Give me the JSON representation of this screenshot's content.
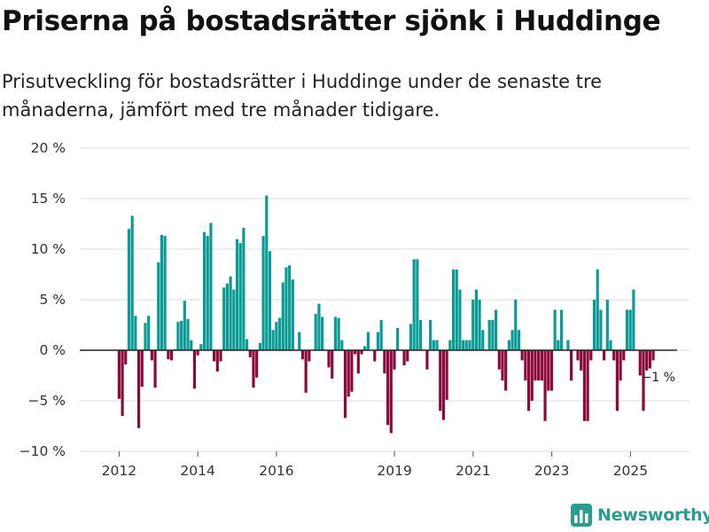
{
  "title": "Priserna på bostadsrätter sjönk i Huddinge",
  "subtitle": "Prisutveckling för bostadsrätter i Huddinge under de senaste tre månaderna, jämfört med tre månader tidigare.",
  "brand": {
    "name": "Newsworthy",
    "icon": "bar-chart-logo-icon",
    "color": "#2a9d8f"
  },
  "colors": {
    "positive": "#0b9b94",
    "negative": "#8b0a3b",
    "grid": "#dddddd",
    "baseline": "#222222"
  },
  "chart_data": {
    "type": "bar",
    "title": "Priserna på bostadsrätter sjönk i Huddinge",
    "xlabel": "",
    "ylabel": "",
    "ylim": [
      -10,
      20
    ],
    "xlim": [
      2011.0,
      2026.5
    ],
    "yticks": [
      -10,
      -5,
      0,
      5,
      10,
      15,
      20
    ],
    "ytick_labels": [
      "−10 %",
      "−5 %",
      "0 %",
      "5 %",
      "10 %",
      "15 %",
      "20 %"
    ],
    "xticks": [
      2012,
      2014,
      2016,
      2019,
      2021,
      2023,
      2025
    ],
    "xtick_labels": [
      "2012",
      "2014",
      "2016",
      "2019",
      "2021",
      "2023",
      "2025"
    ],
    "x_start": 2012.0,
    "x_step": 0.0833,
    "values": [
      -4.8,
      -6.5,
      -1.4,
      12,
      13.3,
      3.4,
      -7.7,
      -3.6,
      2.7,
      3.4,
      -1.0,
      -3.7,
      8.7,
      11.4,
      11.3,
      -0.9,
      -1.0,
      0.1,
      2.8,
      2.9,
      4.9,
      3.1,
      1.0,
      -3.8,
      -0.5,
      0.6,
      11.7,
      11.3,
      12.6,
      -1.1,
      -2.1,
      -1.1,
      6.2,
      6.6,
      7.3,
      6.0,
      11.0,
      10.6,
      12.1,
      1.1,
      -0.7,
      -3.7,
      -2.7,
      0.7,
      11.3,
      15.3,
      9.8,
      2.0,
      2.8,
      3.2,
      6.7,
      8.2,
      8.4,
      7.0,
      0,
      1.8,
      -0.9,
      -4.2,
      -1.1,
      0,
      3.6,
      4.6,
      3.3,
      0,
      -1.7,
      -2.8,
      3.3,
      3.2,
      1.0,
      -6.7,
      -4.6,
      -4.1,
      -0.4,
      -2.3,
      -0.4,
      0.4,
      1.8,
      0,
      -1.1,
      1.8,
      3.0,
      -2.3,
      -7.4,
      -8.2,
      -1.9,
      2.2,
      0,
      -1.5,
      -1.1,
      2.6,
      9.0,
      9.0,
      3.0,
      0,
      -1.9,
      3.0,
      1.0,
      1.0,
      -6.0,
      -6.9,
      -4.9,
      1.0,
      8.0,
      8.0,
      6.0,
      1.0,
      1.0,
      1.0,
      5.0,
      6.0,
      5.0,
      2.0,
      0,
      3.0,
      3.0,
      4.0,
      -1.9,
      -3.0,
      -4.0,
      1.0,
      2.0,
      5.0,
      2.0,
      -1.0,
      -3.0,
      -6.0,
      -5.0,
      -3.0,
      -3.0,
      -3.0,
      -7.0,
      -4.0,
      -4.0,
      4.0,
      1.0,
      4.0,
      0,
      1.0,
      -3.0,
      0,
      -1.0,
      -2.0,
      -7.0,
      -7.0,
      -1.0,
      5.0,
      8.0,
      4.0,
      -1.0,
      5.0,
      1.0,
      -1.0,
      -6.0,
      -3.0,
      -1.0,
      4.0,
      4.0,
      6.0,
      0,
      -2.5,
      -6.0,
      -2.0,
      -1.8,
      -1.0
    ],
    "annotation": {
      "text": "−1 %",
      "index": 164
    }
  }
}
